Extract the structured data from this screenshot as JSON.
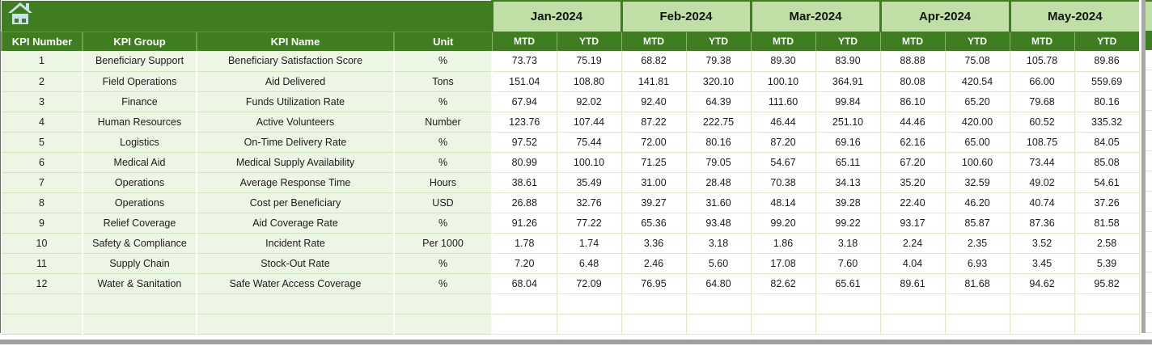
{
  "icons": {
    "home": "home-icon"
  },
  "table": {
    "column_headers": [
      "KPI Number",
      "KPI Group",
      "KPI Name",
      "Unit"
    ],
    "months": [
      "Jan-2024",
      "Feb-2024",
      "Mar-2024",
      "Apr-2024",
      "May-2024"
    ],
    "sub_headers": [
      "MTD",
      "YTD"
    ],
    "rows": [
      {
        "kpi_number": "1",
        "kpi_group": "Beneficiary Support",
        "kpi_name": "Beneficiary Satisfaction Score",
        "unit": "%",
        "values": [
          "73.73",
          "75.19",
          "68.82",
          "79.38",
          "89.30",
          "83.90",
          "88.88",
          "75.08",
          "105.78",
          "89.86"
        ]
      },
      {
        "kpi_number": "2",
        "kpi_group": "Field Operations",
        "kpi_name": "Aid Delivered",
        "unit": "Tons",
        "values": [
          "151.04",
          "108.80",
          "141.81",
          "320.10",
          "100.10",
          "364.91",
          "80.08",
          "420.54",
          "66.00",
          "559.69"
        ]
      },
      {
        "kpi_number": "3",
        "kpi_group": "Finance",
        "kpi_name": "Funds Utilization Rate",
        "unit": "%",
        "values": [
          "67.94",
          "92.02",
          "92.40",
          "64.39",
          "111.60",
          "99.84",
          "86.10",
          "65.20",
          "79.68",
          "80.16"
        ]
      },
      {
        "kpi_number": "4",
        "kpi_group": "Human Resources",
        "kpi_name": "Active Volunteers",
        "unit": "Number",
        "values": [
          "123.76",
          "107.44",
          "87.22",
          "222.75",
          "46.44",
          "251.10",
          "44.46",
          "420.00",
          "60.52",
          "335.32"
        ]
      },
      {
        "kpi_number": "5",
        "kpi_group": "Logistics",
        "kpi_name": "On-Time Delivery Rate",
        "unit": "%",
        "values": [
          "97.52",
          "75.44",
          "72.00",
          "80.16",
          "87.20",
          "69.16",
          "62.16",
          "65.00",
          "108.75",
          "84.05"
        ]
      },
      {
        "kpi_number": "6",
        "kpi_group": "Medical Aid",
        "kpi_name": "Medical Supply Availability",
        "unit": "%",
        "values": [
          "80.99",
          "100.10",
          "71.25",
          "79.05",
          "54.67",
          "65.11",
          "67.20",
          "100.60",
          "73.44",
          "85.08"
        ]
      },
      {
        "kpi_number": "7",
        "kpi_group": "Operations",
        "kpi_name": "Average Response Time",
        "unit": "Hours",
        "values": [
          "38.61",
          "35.49",
          "31.00",
          "28.48",
          "70.38",
          "34.13",
          "35.20",
          "32.59",
          "49.02",
          "54.61"
        ]
      },
      {
        "kpi_number": "8",
        "kpi_group": "Operations",
        "kpi_name": "Cost per Beneficiary",
        "unit": "USD",
        "values": [
          "26.88",
          "32.76",
          "39.27",
          "31.60",
          "48.14",
          "39.28",
          "22.40",
          "46.20",
          "40.74",
          "37.26"
        ]
      },
      {
        "kpi_number": "9",
        "kpi_group": "Relief Coverage",
        "kpi_name": "Aid Coverage Rate",
        "unit": "%",
        "values": [
          "91.26",
          "77.22",
          "65.36",
          "93.48",
          "99.20",
          "99.22",
          "93.17",
          "85.87",
          "87.36",
          "81.58"
        ]
      },
      {
        "kpi_number": "10",
        "kpi_group": "Safety & Compliance",
        "kpi_name": "Incident Rate",
        "unit": "Per 1000",
        "values": [
          "1.78",
          "1.74",
          "3.36",
          "3.18",
          "1.86",
          "3.18",
          "2.24",
          "2.35",
          "3.52",
          "2.58"
        ]
      },
      {
        "kpi_number": "11",
        "kpi_group": "Supply Chain",
        "kpi_name": "Stock-Out Rate",
        "unit": "%",
        "values": [
          "7.20",
          "6.48",
          "2.46",
          "5.60",
          "17.08",
          "7.60",
          "4.04",
          "6.93",
          "3.45",
          "5.39"
        ]
      },
      {
        "kpi_number": "12",
        "kpi_group": "Water & Sanitation",
        "kpi_name": "Safe Water Access Coverage",
        "unit": "%",
        "values": [
          "68.04",
          "72.09",
          "76.95",
          "64.80",
          "82.62",
          "65.61",
          "89.61",
          "81.68",
          "94.62",
          "95.82"
        ]
      }
    ],
    "empty_rows": 2
  },
  "colors": {
    "header_green": "#3f7d21",
    "month_header_green": "#c0dfa6",
    "row_light_green": "#edf6e4",
    "grid_green": "#d9ecc6",
    "home_icon_blue": "#c9dfeb",
    "pane_split_gray": "#a0a0a0"
  }
}
